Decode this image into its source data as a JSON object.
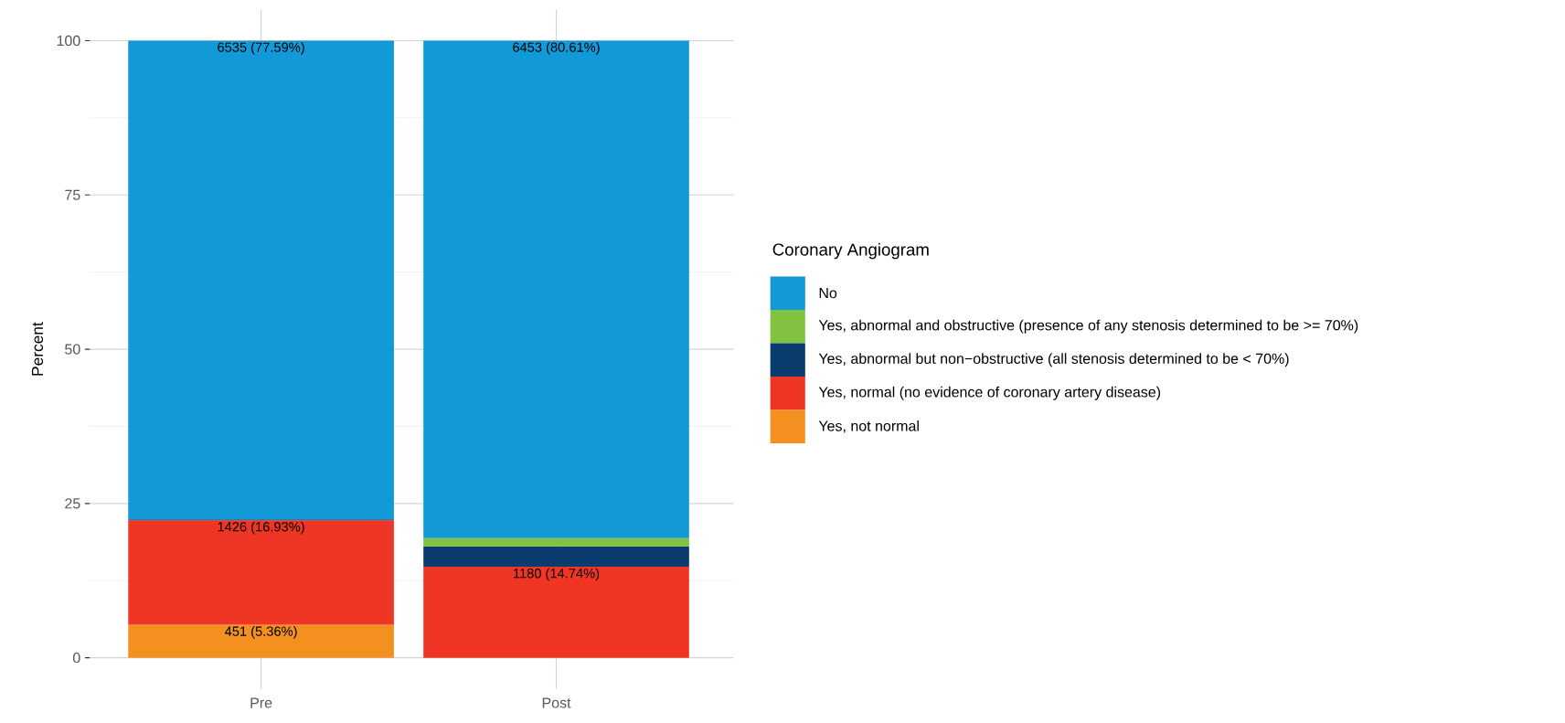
{
  "chart_data": {
    "type": "bar",
    "stacked": true,
    "ylabel": "Percent",
    "legend_title": "Coronary Angiogram",
    "categories": [
      "Pre",
      "Post"
    ],
    "series": [
      {
        "name": "Yes, not normal",
        "color": "#f39020",
        "values": [
          5.36,
          null
        ],
        "value_labels": [
          "451 (5.36%)",
          null
        ]
      },
      {
        "name": "Yes, normal (no evidence of coronary artery disease)",
        "color": "#ef3524",
        "values": [
          16.93,
          14.74
        ],
        "value_labels": [
          "1426 (16.93%)",
          "1180 (14.74%)"
        ]
      },
      {
        "name": "Yes, abnormal but non−obstructive (all stenosis determined to be < 70%)",
        "color": "#0b3c6e",
        "values": [
          0.12,
          3.3
        ],
        "value_labels": [
          null,
          null
        ]
      },
      {
        "name": "Yes, abnormal and obstructive (presence of any stenosis determined to be >= 70%)",
        "color": "#82c241",
        "values": [
          null,
          1.35
        ],
        "value_labels": [
          null,
          null
        ]
      },
      {
        "name": "No",
        "color": "#119ad7",
        "values": [
          77.59,
          80.61
        ],
        "value_labels": [
          "6535 (77.59%)",
          "6453 (80.61%)"
        ]
      }
    ],
    "ylim": [
      -5,
      105
    ],
    "yticks": [
      0,
      25,
      50,
      75,
      100
    ],
    "grid": true,
    "legend": "right"
  }
}
